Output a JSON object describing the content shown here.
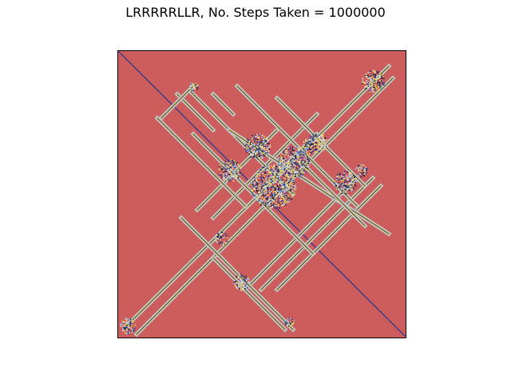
{
  "title": "LRRRRRLLR, No. Steps Taken = 1000000",
  "ant_rule": "LRRRRRLLR",
  "steps": 1000000,
  "colors": {
    "background": "#cd5c5c",
    "frame": "#000000",
    "trail_blue": "#2f3b8f",
    "trail_yellow": "#f2d24a",
    "trail_light_blue": "#a7c4f2",
    "trail_pale": "#e9e1b8",
    "trail_dark": "#1e1e3f"
  }
}
